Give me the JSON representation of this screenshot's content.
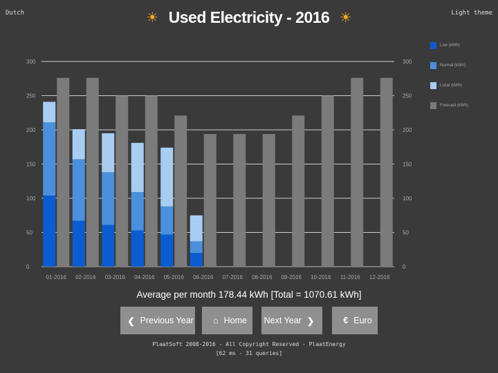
{
  "header": {
    "language_link": "Dutch",
    "theme_link": "Light theme",
    "title": "Used Electricity - 2016",
    "sun_icon": "☀"
  },
  "legend": [
    {
      "label": "Low (kWh)",
      "color": "#0b5cd0"
    },
    {
      "label": "Normal (kWh)",
      "color": "#4a90dc"
    },
    {
      "label": "Local (kWh)",
      "color": "#a8cdf2"
    },
    {
      "label": "Forecast (kWh)",
      "color": "#7b7b7b"
    }
  ],
  "chart_data": {
    "type": "bar",
    "stacked": true,
    "categories": [
      "01-2016",
      "02-2016",
      "03-2016",
      "04-2016",
      "05-2016",
      "06-2016",
      "07-2016",
      "08-2016",
      "09-2016",
      "10-2016",
      "11-2016",
      "12-2016"
    ],
    "series": [
      {
        "name": "Low (kWh)",
        "stack": "actual",
        "color": "#0b5cd0",
        "values": [
          104,
          67,
          61,
          53,
          47,
          20,
          0,
          0,
          0,
          0,
          0,
          0
        ]
      },
      {
        "name": "Normal (kWh)",
        "stack": "actual",
        "color": "#4a90dc",
        "values": [
          107,
          90,
          77,
          56,
          41,
          17,
          0,
          0,
          0,
          0,
          0,
          0
        ]
      },
      {
        "name": "Local (kWh)",
        "stack": "actual",
        "color": "#a8cdf2",
        "values": [
          30,
          44,
          57,
          72,
          86,
          38,
          0,
          0,
          0,
          0,
          0,
          0
        ]
      },
      {
        "name": "Forecast (kWh)",
        "stack": "forecast",
        "color": "#7b7b7b",
        "values": [
          276,
          276,
          250,
          250,
          221,
          194,
          194,
          194,
          221,
          250,
          276,
          276
        ]
      }
    ],
    "y_ticks": [
      0,
      50,
      100,
      150,
      200,
      250,
      300
    ],
    "ylim": [
      0,
      300
    ],
    "grid": true,
    "dual_y_axis": true,
    "legend_position": "right"
  },
  "summary": {
    "average_text": "Average per month 178.44 kWh [Total = 1070.61 kWh]"
  },
  "nav": {
    "prev_label": "Previous Year",
    "home_label": "Home",
    "next_label": "Next Year",
    "euro_label": "Euro",
    "prev_icon": "❮",
    "home_icon": "⌂",
    "next_icon": "❯",
    "euro_icon": "€"
  },
  "footer": {
    "copyright": "PlaatSoft 2008-2016 - All Copyright Reserved - PlaatEnergy",
    "stats": "[62 ms - 31 queries]"
  }
}
